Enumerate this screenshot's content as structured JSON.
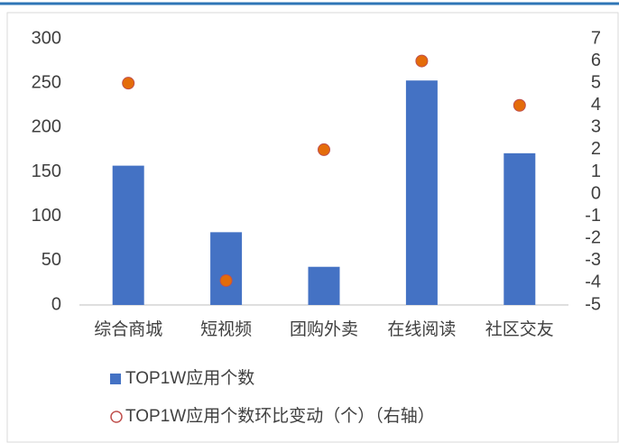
{
  "chart_data": {
    "type": "bar",
    "categories": [
      "综合商城",
      "短视频",
      "团购外卖",
      "在线阅读",
      "社区交友"
    ],
    "series": [
      {
        "name": "TOP1W应用个数",
        "color": "#4472c4",
        "values": [
          157,
          82,
          43,
          253,
          171
        ]
      },
      {
        "name": "TOP1W应用个数环比变动（个）（右轴）",
        "type": "scatter",
        "axis": "y2",
        "color": "#e46c0a",
        "values": [
          5,
          -3.9,
          2,
          6,
          4
        ]
      }
    ],
    "ylim": [
      0,
      300
    ],
    "yticks": [
      0,
      50,
      100,
      150,
      200,
      250,
      300
    ],
    "y2lim": [
      -5,
      7
    ],
    "y2ticks": [
      -5,
      -4,
      -3,
      -2,
      -1,
      0,
      1,
      2,
      3,
      4,
      5,
      6,
      7
    ],
    "grid": false,
    "legend": "bottom"
  }
}
